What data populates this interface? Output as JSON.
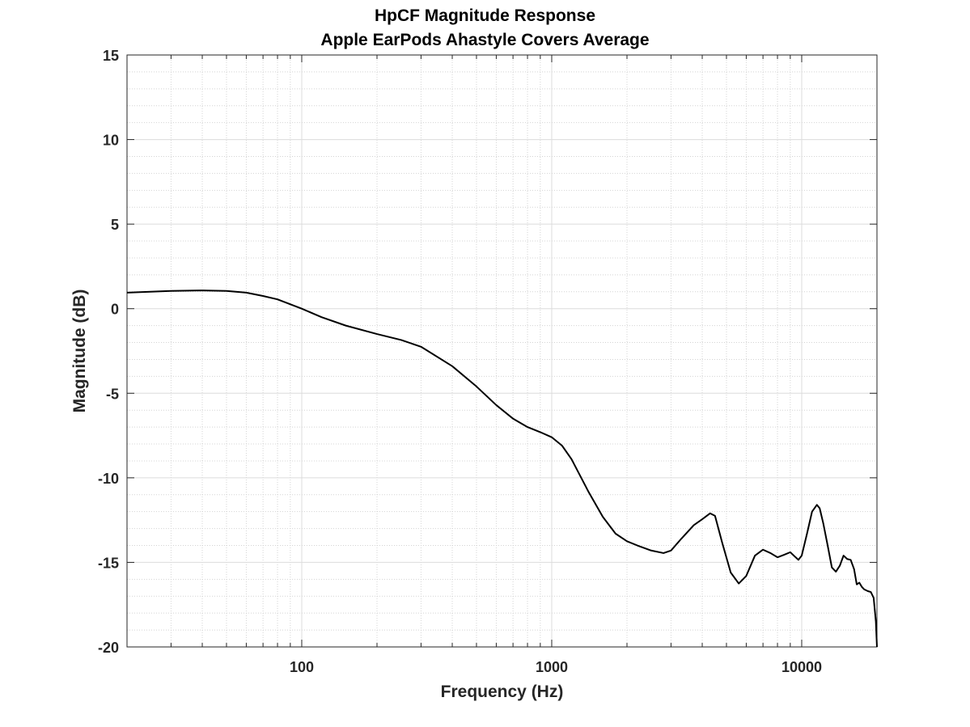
{
  "chart_data": {
    "type": "line",
    "title": "HpCF Magnitude Response",
    "subtitle": "Apple EarPods Ahastyle Covers  Average",
    "xlabel": "Frequency (Hz)",
    "ylabel": "Magnitude (dB)",
    "xscale": "log",
    "xlim": [
      20,
      20000
    ],
    "ylim": [
      -20,
      15
    ],
    "xticks": [
      100,
      1000,
      10000
    ],
    "xtick_labels": [
      "100",
      "1000",
      "10000"
    ],
    "yticks": [
      -20,
      -15,
      -10,
      -5,
      0,
      5,
      10,
      15
    ],
    "ytick_labels": [
      "-20",
      "-15",
      "-10",
      "-5",
      "0",
      "5",
      "10",
      "15"
    ],
    "grid": true,
    "minor_grid": true,
    "legend": "none",
    "line_color": "#000000",
    "series": [
      {
        "x": [
          20,
          30,
          40,
          50,
          60,
          70,
          80,
          100,
          120,
          150,
          200,
          250,
          300,
          400,
          500,
          600,
          700,
          800,
          900,
          1000,
          1100,
          1200,
          1400,
          1600,
          1800,
          2000,
          2200,
          2500,
          2800,
          3000,
          3300,
          3700,
          4000,
          4300,
          4500,
          4800,
          5200,
          5600,
          6000,
          6500,
          7000,
          7500,
          8000,
          8500,
          9000,
          9300,
          9700,
          10000,
          10500,
          11000,
          11500,
          11800,
          12200,
          12700,
          13200,
          13700,
          14200,
          14700,
          15200,
          15700,
          16200,
          16600,
          17000,
          17400,
          17800,
          18400,
          18900,
          19400,
          19800,
          20000
        ],
        "values": [
          0.95,
          1.05,
          1.08,
          1.05,
          0.95,
          0.75,
          0.55,
          0.0,
          -0.5,
          -1.0,
          -1.5,
          -1.85,
          -2.25,
          -3.4,
          -4.6,
          -5.7,
          -6.5,
          -7.0,
          -7.3,
          -7.6,
          -8.1,
          -8.9,
          -10.8,
          -12.3,
          -13.3,
          -13.75,
          -14.0,
          -14.3,
          -14.45,
          -14.3,
          -13.6,
          -12.8,
          -12.45,
          -12.1,
          -12.25,
          -13.8,
          -15.6,
          -16.25,
          -15.8,
          -14.6,
          -14.25,
          -14.45,
          -14.7,
          -14.55,
          -14.4,
          -14.6,
          -14.85,
          -14.6,
          -13.3,
          -12.0,
          -11.6,
          -11.8,
          -12.7,
          -14.0,
          -15.3,
          -15.55,
          -15.2,
          -14.6,
          -14.8,
          -14.85,
          -15.4,
          -16.3,
          -16.2,
          -16.45,
          -16.6,
          -16.7,
          -16.75,
          -17.1,
          -18.5,
          -20.0
        ]
      }
    ]
  }
}
